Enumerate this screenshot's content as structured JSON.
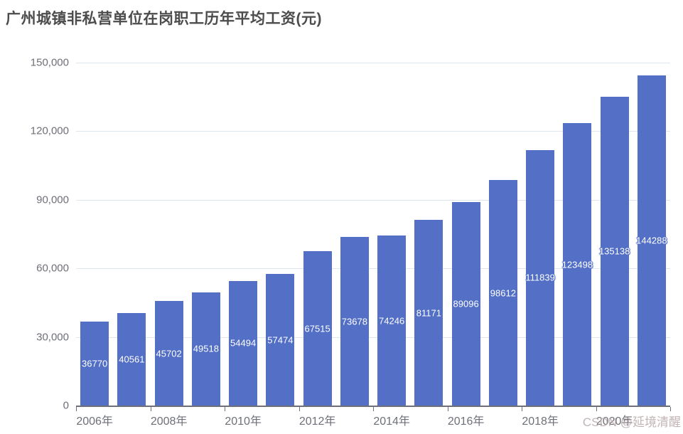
{
  "title": "广州城镇非私营单位在岗职工历年平均工资(元)",
  "watermark": {
    "text": "CSDN @延境清醒"
  },
  "colors": {
    "bar": "#5470C6",
    "grid_line": "#E0E6F1",
    "axis_line": "#6E7079",
    "axis_label": "#6E7079",
    "title_text": "#4C4C4C",
    "bar_label_text": "#FFFFFF",
    "background": "#FFFFFF",
    "watermark_text": "#B9A8A8"
  },
  "chart_data": {
    "type": "bar",
    "title": "广州城镇非私营单位在岗职工历年平均工资(元)",
    "categories": [
      "2006年",
      "2007年",
      "2008年",
      "2009年",
      "2010年",
      "2011年",
      "2012年",
      "2013年",
      "2014年",
      "2015年",
      "2016年",
      "2017年",
      "2018年",
      "2019年",
      "2020年",
      "2021年"
    ],
    "values": [
      36770,
      40561,
      45702,
      49518,
      54494,
      57474,
      67515,
      73678,
      74246,
      81171,
      89096,
      98612,
      111839,
      123498,
      135138,
      144288
    ],
    "xlabel": "",
    "ylabel": "",
    "ylim": [
      0,
      150000
    ],
    "y_tick_step": 30000,
    "y_tick_labels": [
      "0",
      "30,000",
      "60,000",
      "90,000",
      "120,000",
      "150,000"
    ],
    "x_tick_label_interval": 2,
    "x_tick_labels_shown": [
      "2006年",
      "2008年",
      "2010年",
      "2012年",
      "2014年",
      "2016年",
      "2018年",
      "2020年"
    ],
    "grid": true,
    "legend": false,
    "bar_value_labels": "inside-center"
  }
}
